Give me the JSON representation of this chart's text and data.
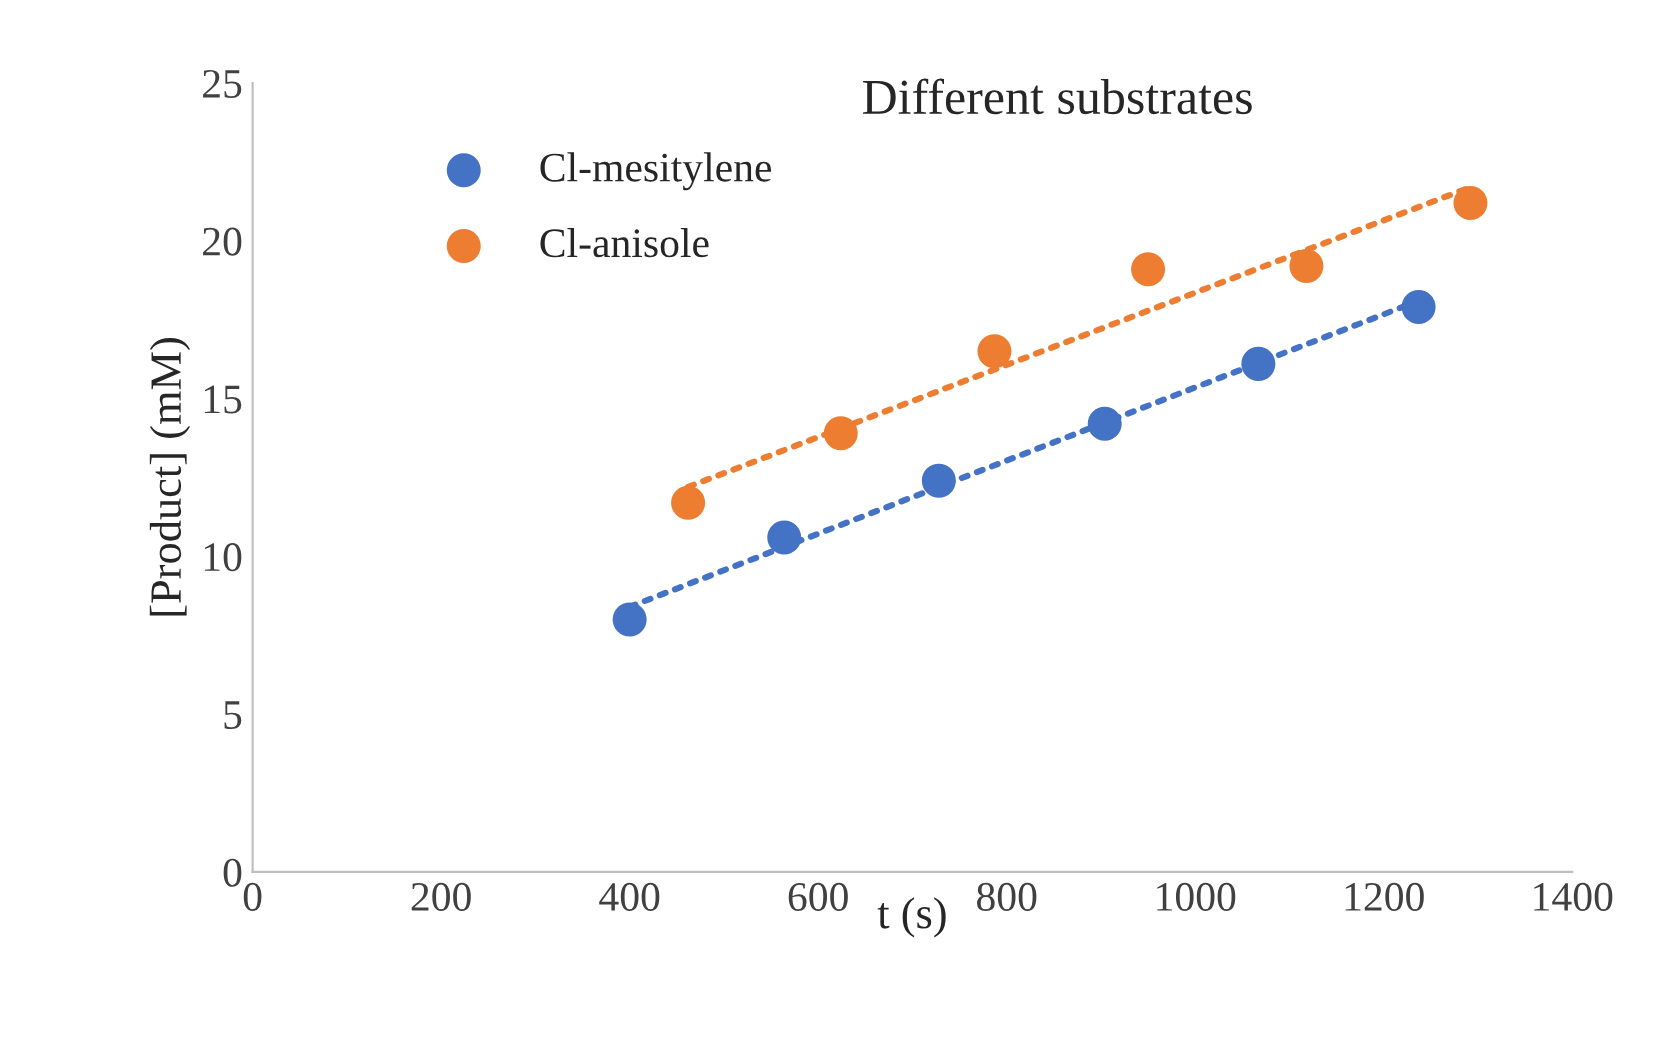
{
  "chart_data": {
    "type": "scatter",
    "title": "Different substrates",
    "xlabel": "t (s)",
    "ylabel": "[Product] (mM)",
    "xlim": [
      0,
      1400
    ],
    "xticks": [
      0,
      200,
      400,
      600,
      800,
      1000,
      1200,
      1400
    ],
    "ylim": [
      0,
      25
    ],
    "yticks": [
      0,
      5,
      10,
      15,
      20,
      25
    ],
    "grid": false,
    "legend": "top left",
    "series": [
      {
        "name": "Cl-mesitylene",
        "marker": "circle",
        "color": "#4472c4",
        "x": [
          400,
          564,
          728,
          904,
          1067,
          1237
        ],
        "values": [
          8.0,
          10.6,
          12.4,
          14.2,
          16.1,
          17.9
        ]
      },
      {
        "name": "Cl-anisole",
        "marker": "circle",
        "color": "#ed7d31",
        "x": [
          462,
          624,
          787,
          950,
          1118,
          1292
        ],
        "values": [
          11.7,
          13.9,
          16.5,
          19.1,
          19.2,
          21.2
        ]
      },
      {
        "type": "line",
        "marker": "none",
        "line_style": "dotted",
        "color": "#4472c4",
        "x": [
          400,
          1237
        ],
        "values": [
          8.4,
          18.1
        ]
      },
      {
        "type": "line",
        "marker": "none",
        "line_style": "dotted",
        "color": "#ed7d31",
        "x": [
          462,
          1292
        ],
        "values": [
          12.2,
          21.7
        ]
      }
    ]
  }
}
